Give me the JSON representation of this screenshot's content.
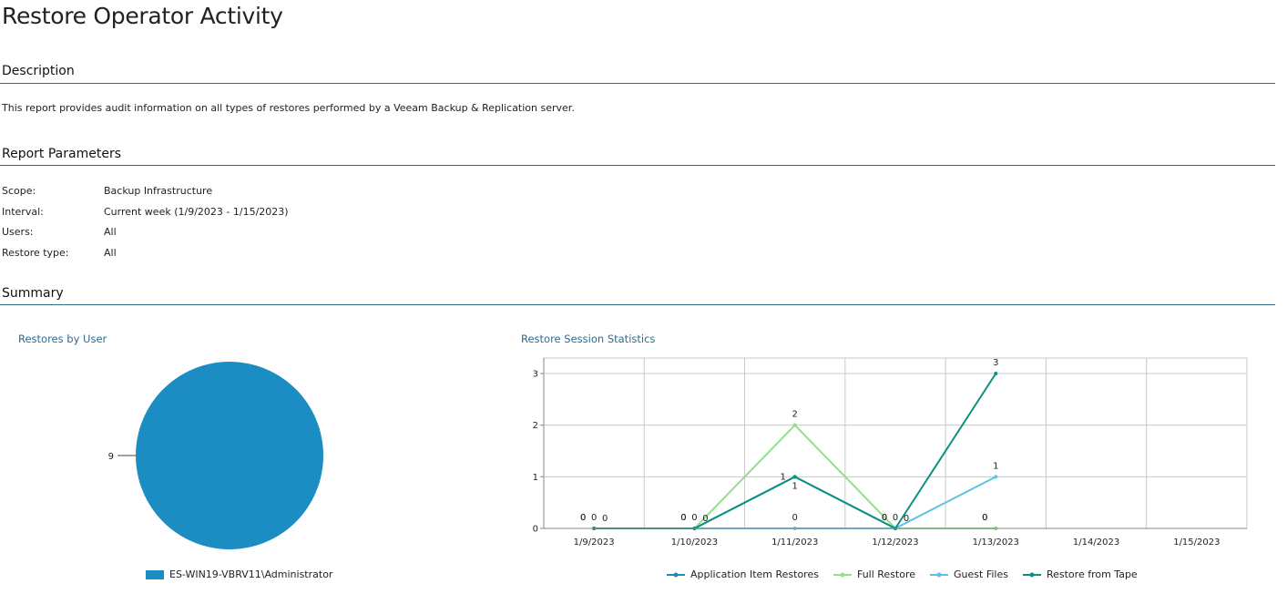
{
  "report": {
    "title": "Restore Operator Activity"
  },
  "description": {
    "heading": "Description",
    "text": "This report provides audit information on all types of restores performed by a Veeam Backup & Replication server."
  },
  "parameters": {
    "heading": "Report Parameters",
    "items": [
      {
        "label": "Scope:",
        "value": "Backup Infrastructure"
      },
      {
        "label": "Interval:",
        "value": "Current week (1/9/2023 - 1/15/2023)"
      },
      {
        "label": "Users:",
        "value": "All"
      },
      {
        "label": "Restore type:",
        "value": "All"
      }
    ]
  },
  "summary": {
    "heading": "Summary"
  },
  "chart_data": [
    {
      "type": "pie",
      "title": "Restores by User",
      "slices": [
        {
          "label": "ES-WIN19-VBRV11\\Administrator",
          "value": 9,
          "color": "#1b8dc2"
        }
      ],
      "legend_position": "bottom"
    },
    {
      "type": "line",
      "title": "Restore Session Statistics",
      "categories": [
        "1/9/2023",
        "1/10/2023",
        "1/11/2023",
        "1/12/2023",
        "1/13/2023",
        "1/14/2023",
        "1/15/2023"
      ],
      "ylim": [
        0,
        3.3
      ],
      "yticks": [
        0,
        1,
        2,
        3
      ],
      "grid": true,
      "legend_position": "bottom",
      "series": [
        {
          "name": "Application Item Restores",
          "color": "#1f8cb8",
          "values": [
            0,
            0,
            1,
            0,
            0,
            null,
            null
          ]
        },
        {
          "name": "Full Restore",
          "color": "#90e08c",
          "values": [
            0,
            0,
            2,
            0,
            0,
            null,
            null
          ]
        },
        {
          "name": "Guest Files",
          "color": "#5bc3e6",
          "values": [
            0,
            0,
            0,
            0,
            1,
            null,
            null
          ]
        },
        {
          "name": "Restore from Tape",
          "color": "#0e8f80",
          "values": [
            0,
            0,
            1,
            0,
            3,
            null,
            null
          ]
        }
      ]
    }
  ]
}
